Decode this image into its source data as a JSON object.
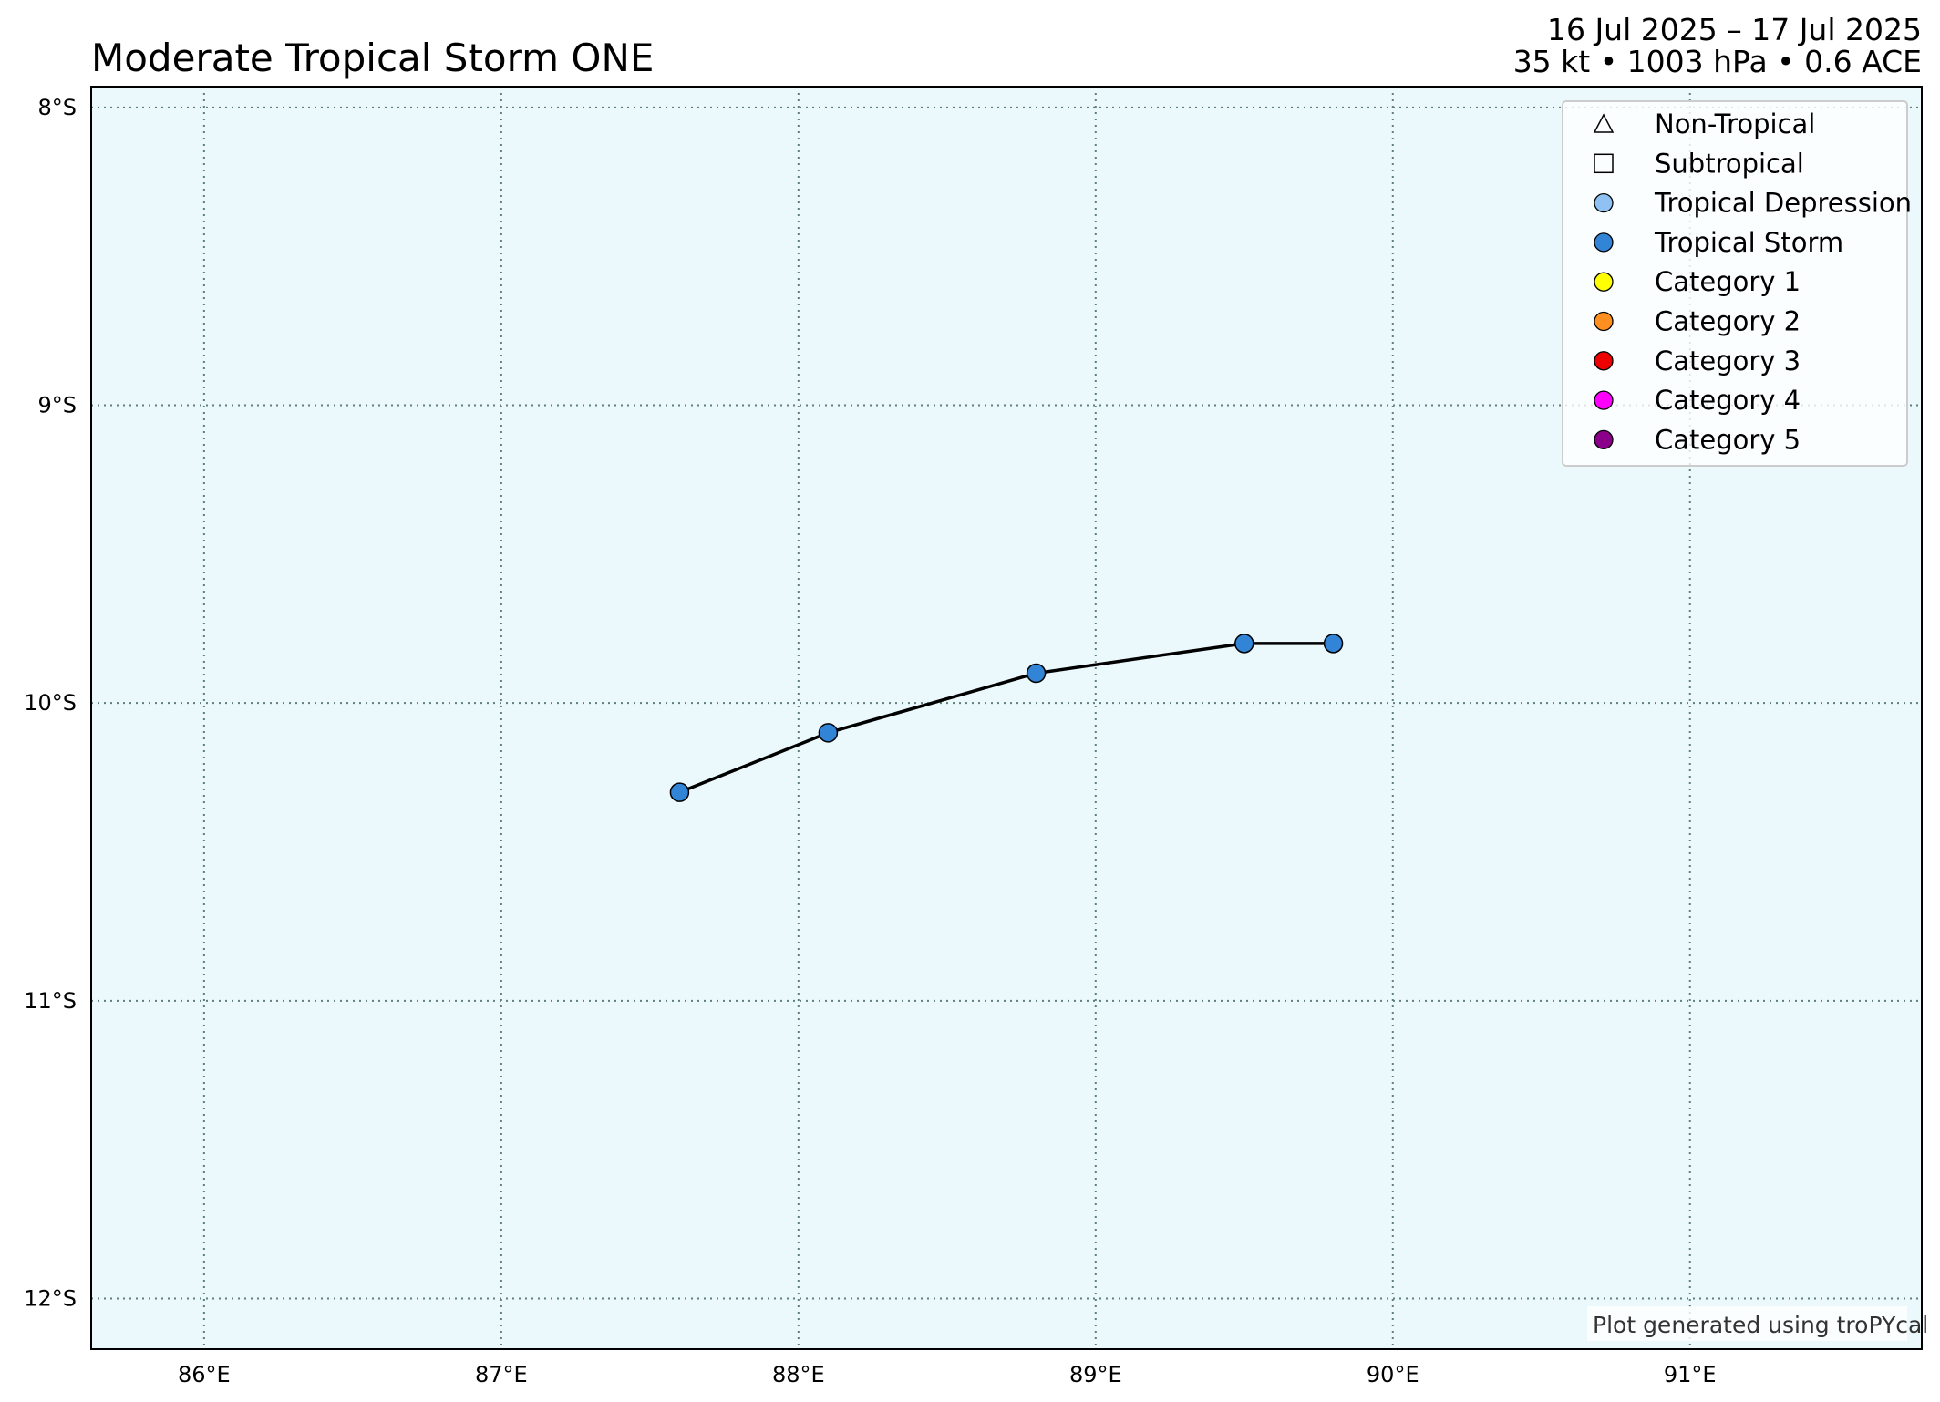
{
  "header": {
    "title": "Moderate Tropical Storm ONE",
    "date_range": "16 Jul 2025 – 17 Jul 2025",
    "stats": "35 kt • 1003 hPa • 0.6 ACE"
  },
  "credit": "Plot generated using troPYcal",
  "colors": {
    "ocean": "#ebf9fc",
    "grid": "#5f7f78",
    "track": "#000000",
    "tropical_storm": "#3184d6"
  },
  "legend": {
    "placement": "top-right",
    "items": [
      {
        "label": "Non-Tropical",
        "marker": "triangle",
        "color": "none"
      },
      {
        "label": "Subtropical",
        "marker": "square",
        "color": "none"
      },
      {
        "label": "Tropical Depression",
        "marker": "circle",
        "color": "#8fc2f2"
      },
      {
        "label": "Tropical Storm",
        "marker": "circle",
        "color": "#3184d6"
      },
      {
        "label": "Category 1",
        "marker": "circle",
        "color": "#ffff00"
      },
      {
        "label": "Category 2",
        "marker": "circle",
        "color": "#ff8f20"
      },
      {
        "label": "Category 3",
        "marker": "circle",
        "color": "#ee0000"
      },
      {
        "label": "Category 4",
        "marker": "circle",
        "color": "#ff00ff"
      },
      {
        "label": "Category 5",
        "marker": "circle",
        "color": "#8b008b"
      }
    ]
  },
  "chart_data": {
    "type": "scatter",
    "title": "Moderate Tropical Storm ONE",
    "xlim": [
      85.62,
      91.78
    ],
    "ylim": [
      -12.17,
      -7.93
    ],
    "grid": true,
    "x_ticks": [
      86,
      87,
      88,
      89,
      90,
      91
    ],
    "x_tick_labels": [
      "86°E",
      "87°E",
      "88°E",
      "89°E",
      "90°E",
      "91°E"
    ],
    "y_ticks": [
      -8,
      -9,
      -10,
      -11,
      -12
    ],
    "y_tick_labels": [
      "8°S",
      "9°S",
      "10°S",
      "11°S",
      "12°S"
    ],
    "series": [
      {
        "name": "Tropical Storm",
        "x": [
          87.6,
          88.1,
          88.8,
          89.5,
          89.8
        ],
        "y": [
          -10.3,
          -10.1,
          -9.9,
          -9.8,
          -9.8
        ]
      }
    ]
  }
}
